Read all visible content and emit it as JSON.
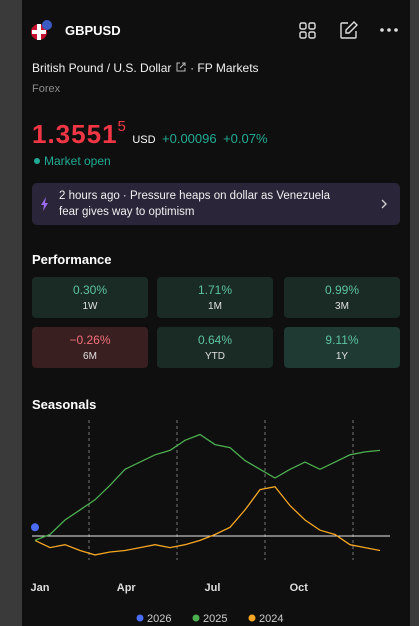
{
  "header": {
    "symbol": "GBPUSD",
    "description": "British Pound / U.S. Dollar",
    "exchange": "· FP Markets",
    "category": "Forex"
  },
  "quote": {
    "price": "1.3551",
    "price_last_digit": "5",
    "currency": "USD",
    "change": "+0.00096",
    "change_percent": "+0.07%",
    "status": "Market open"
  },
  "news": {
    "line1": "2 hours ago · Pressure heaps on dollar as Venezuela",
    "line2": "fear gives way to optimism"
  },
  "performance": {
    "title": "Performance",
    "cells": [
      {
        "value": "0.30%",
        "label": "1W"
      },
      {
        "value": "1.71%",
        "label": "1M"
      },
      {
        "value": "0.99%",
        "label": "3M"
      },
      {
        "value": "−0.26%",
        "label": "6M"
      },
      {
        "value": "0.64%",
        "label": "YTD"
      },
      {
        "value": "9.11%",
        "label": "1Y"
      }
    ]
  },
  "seasonals": {
    "type": "line",
    "title": "Seasonals",
    "x_labels": [
      "Jan",
      "Apr",
      "Jul",
      "Oct"
    ],
    "ylim": [
      -2,
      8
    ],
    "series": [
      {
        "name": "2026",
        "color": "#4a6cf7",
        "values": [
          0.6
        ]
      },
      {
        "name": "2025",
        "color": "#4caf50",
        "values": [
          -0.3,
          0.1,
          1.1,
          1.8,
          2.5,
          3.5,
          4.6,
          5.1,
          5.6,
          5.9,
          6.6,
          7.0,
          6.3,
          6.1,
          5.2,
          4.6,
          4.0,
          4.6,
          5.1,
          4.6,
          5.1,
          5.6,
          5.8,
          5.9
        ]
      },
      {
        "name": "2024",
        "color": "#f5a623",
        "values": [
          -0.3,
          -0.8,
          -0.6,
          -1.0,
          -1.3,
          -1.1,
          -1.0,
          -0.8,
          -0.6,
          -0.8,
          -0.6,
          -0.3,
          0.1,
          0.6,
          1.8,
          3.2,
          3.4,
          2.1,
          1.1,
          0.4,
          0.1,
          -0.6,
          -0.8,
          -1.0
        ]
      }
    ]
  }
}
